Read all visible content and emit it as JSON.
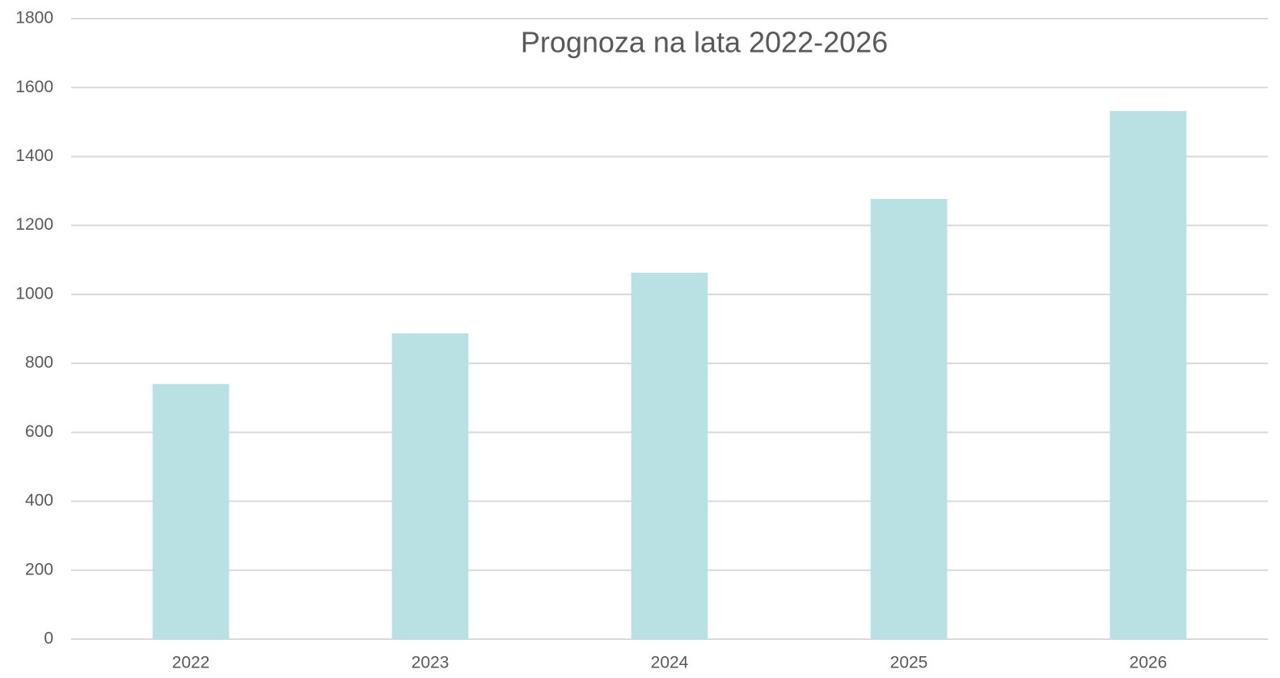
{
  "chart_data": {
    "type": "bar",
    "title": "Prognoza na lata 2022-2026",
    "categories": [
      "2022",
      "2023",
      "2024",
      "2025",
      "2026"
    ],
    "values": [
      740,
      887,
      1063,
      1277,
      1532
    ],
    "color": "#b9e0e2",
    "ylim": [
      0,
      1800
    ],
    "yticks": [
      0,
      200,
      400,
      600,
      800,
      1000,
      1200,
      1400,
      1600,
      1800
    ],
    "grid": true
  }
}
